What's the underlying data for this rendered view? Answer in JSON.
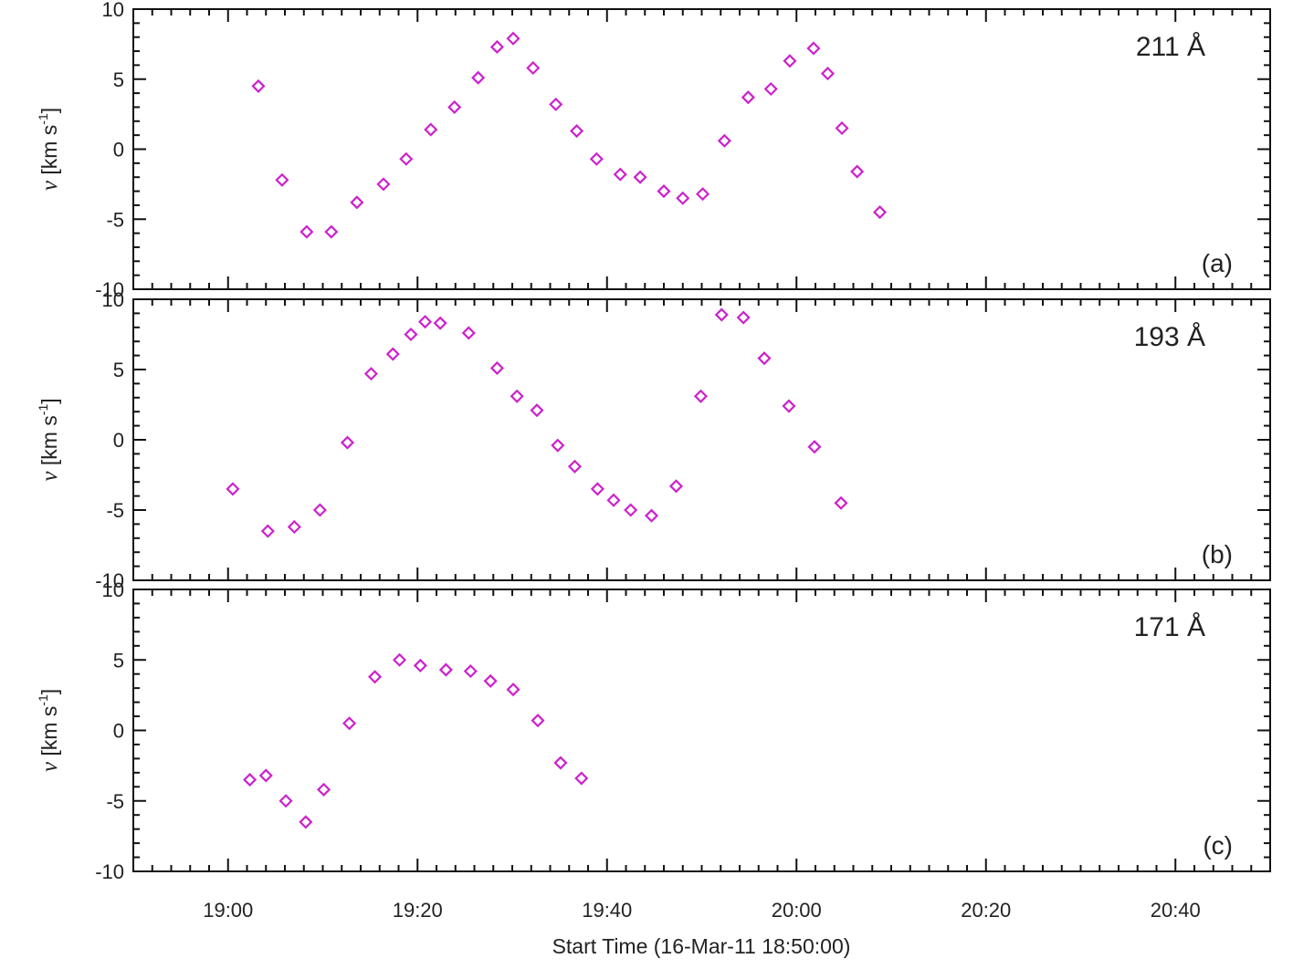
{
  "chart_data": {
    "type": "scatter",
    "xlabel": "Start Time (16-Mar-11 18:50:00)",
    "x_unit": "minutes",
    "xlim": [
      0,
      120
    ],
    "xticks": [
      {
        "value": 10,
        "label": "19:00"
      },
      {
        "value": 30,
        "label": "19:20"
      },
      {
        "value": 50,
        "label": "19:40"
      },
      {
        "value": 70,
        "label": "20:00"
      },
      {
        "value": 90,
        "label": "20:20"
      },
      {
        "value": 110,
        "label": "20:40"
      }
    ],
    "marker": "diamond",
    "marker_color": "#cc22cc",
    "ylim": [
      -10,
      10
    ],
    "yticks": [
      -10,
      -5,
      0,
      5,
      10
    ],
    "ylabel": {
      "symbol": "v",
      "text": " [km s",
      "sup": "-1",
      "close": "]"
    },
    "grid": false,
    "panels": [
      {
        "label": "(a)",
        "wavelength": "211 Å",
        "points": [
          [
            13.2,
            4.5
          ],
          [
            15.7,
            -2.2
          ],
          [
            18.3,
            -5.9
          ],
          [
            20.9,
            -5.9
          ],
          [
            23.6,
            -3.8
          ],
          [
            26.4,
            -2.5
          ],
          [
            28.8,
            -0.7
          ],
          [
            31.4,
            1.4
          ],
          [
            33.9,
            3.0
          ],
          [
            36.4,
            5.1
          ],
          [
            38.4,
            7.3
          ],
          [
            40.1,
            7.9
          ],
          [
            42.2,
            5.8
          ],
          [
            44.6,
            3.2
          ],
          [
            46.8,
            1.3
          ],
          [
            48.9,
            -0.7
          ],
          [
            51.4,
            -1.8
          ],
          [
            53.5,
            -2.0
          ],
          [
            56.0,
            -3.0
          ],
          [
            58.0,
            -3.5
          ],
          [
            60.1,
            -3.2
          ],
          [
            62.4,
            0.6
          ],
          [
            64.9,
            3.7
          ],
          [
            67.3,
            4.3
          ],
          [
            69.3,
            6.3
          ],
          [
            71.8,
            7.2
          ],
          [
            73.3,
            5.4
          ],
          [
            74.8,
            1.5
          ],
          [
            76.4,
            -1.6
          ],
          [
            78.8,
            -4.5
          ]
        ]
      },
      {
        "label": "(b)",
        "wavelength": "193 Å",
        "points": [
          [
            10.5,
            -3.5
          ],
          [
            14.2,
            -6.5
          ],
          [
            17.0,
            -6.2
          ],
          [
            19.7,
            -5.0
          ],
          [
            22.6,
            -0.2
          ],
          [
            25.1,
            4.7
          ],
          [
            27.4,
            6.1
          ],
          [
            29.3,
            7.5
          ],
          [
            30.8,
            8.4
          ],
          [
            32.4,
            8.3
          ],
          [
            35.4,
            7.6
          ],
          [
            38.4,
            5.1
          ],
          [
            40.5,
            3.1
          ],
          [
            42.6,
            2.1
          ],
          [
            44.8,
            -0.4
          ],
          [
            46.6,
            -1.9
          ],
          [
            49.0,
            -3.5
          ],
          [
            50.7,
            -4.3
          ],
          [
            52.5,
            -5.0
          ],
          [
            54.7,
            -5.4
          ],
          [
            57.3,
            -3.3
          ],
          [
            59.9,
            3.1
          ],
          [
            62.1,
            8.9
          ],
          [
            64.4,
            8.7
          ],
          [
            66.6,
            5.8
          ],
          [
            69.2,
            2.4
          ],
          [
            71.9,
            -0.5
          ],
          [
            74.7,
            -4.5
          ]
        ]
      },
      {
        "label": "(c)",
        "wavelength": "171 Å",
        "points": [
          [
            12.3,
            -3.5
          ],
          [
            14.0,
            -3.2
          ],
          [
            16.1,
            -5.0
          ],
          [
            18.2,
            -6.5
          ],
          [
            20.1,
            -4.2
          ],
          [
            22.8,
            0.5
          ],
          [
            25.5,
            3.8
          ],
          [
            28.1,
            5.0
          ],
          [
            30.3,
            4.6
          ],
          [
            33.0,
            4.3
          ],
          [
            35.6,
            4.2
          ],
          [
            37.7,
            3.5
          ],
          [
            40.1,
            2.9
          ],
          [
            42.7,
            0.7
          ],
          [
            45.1,
            -2.3
          ],
          [
            47.3,
            -3.4
          ]
        ]
      }
    ]
  }
}
